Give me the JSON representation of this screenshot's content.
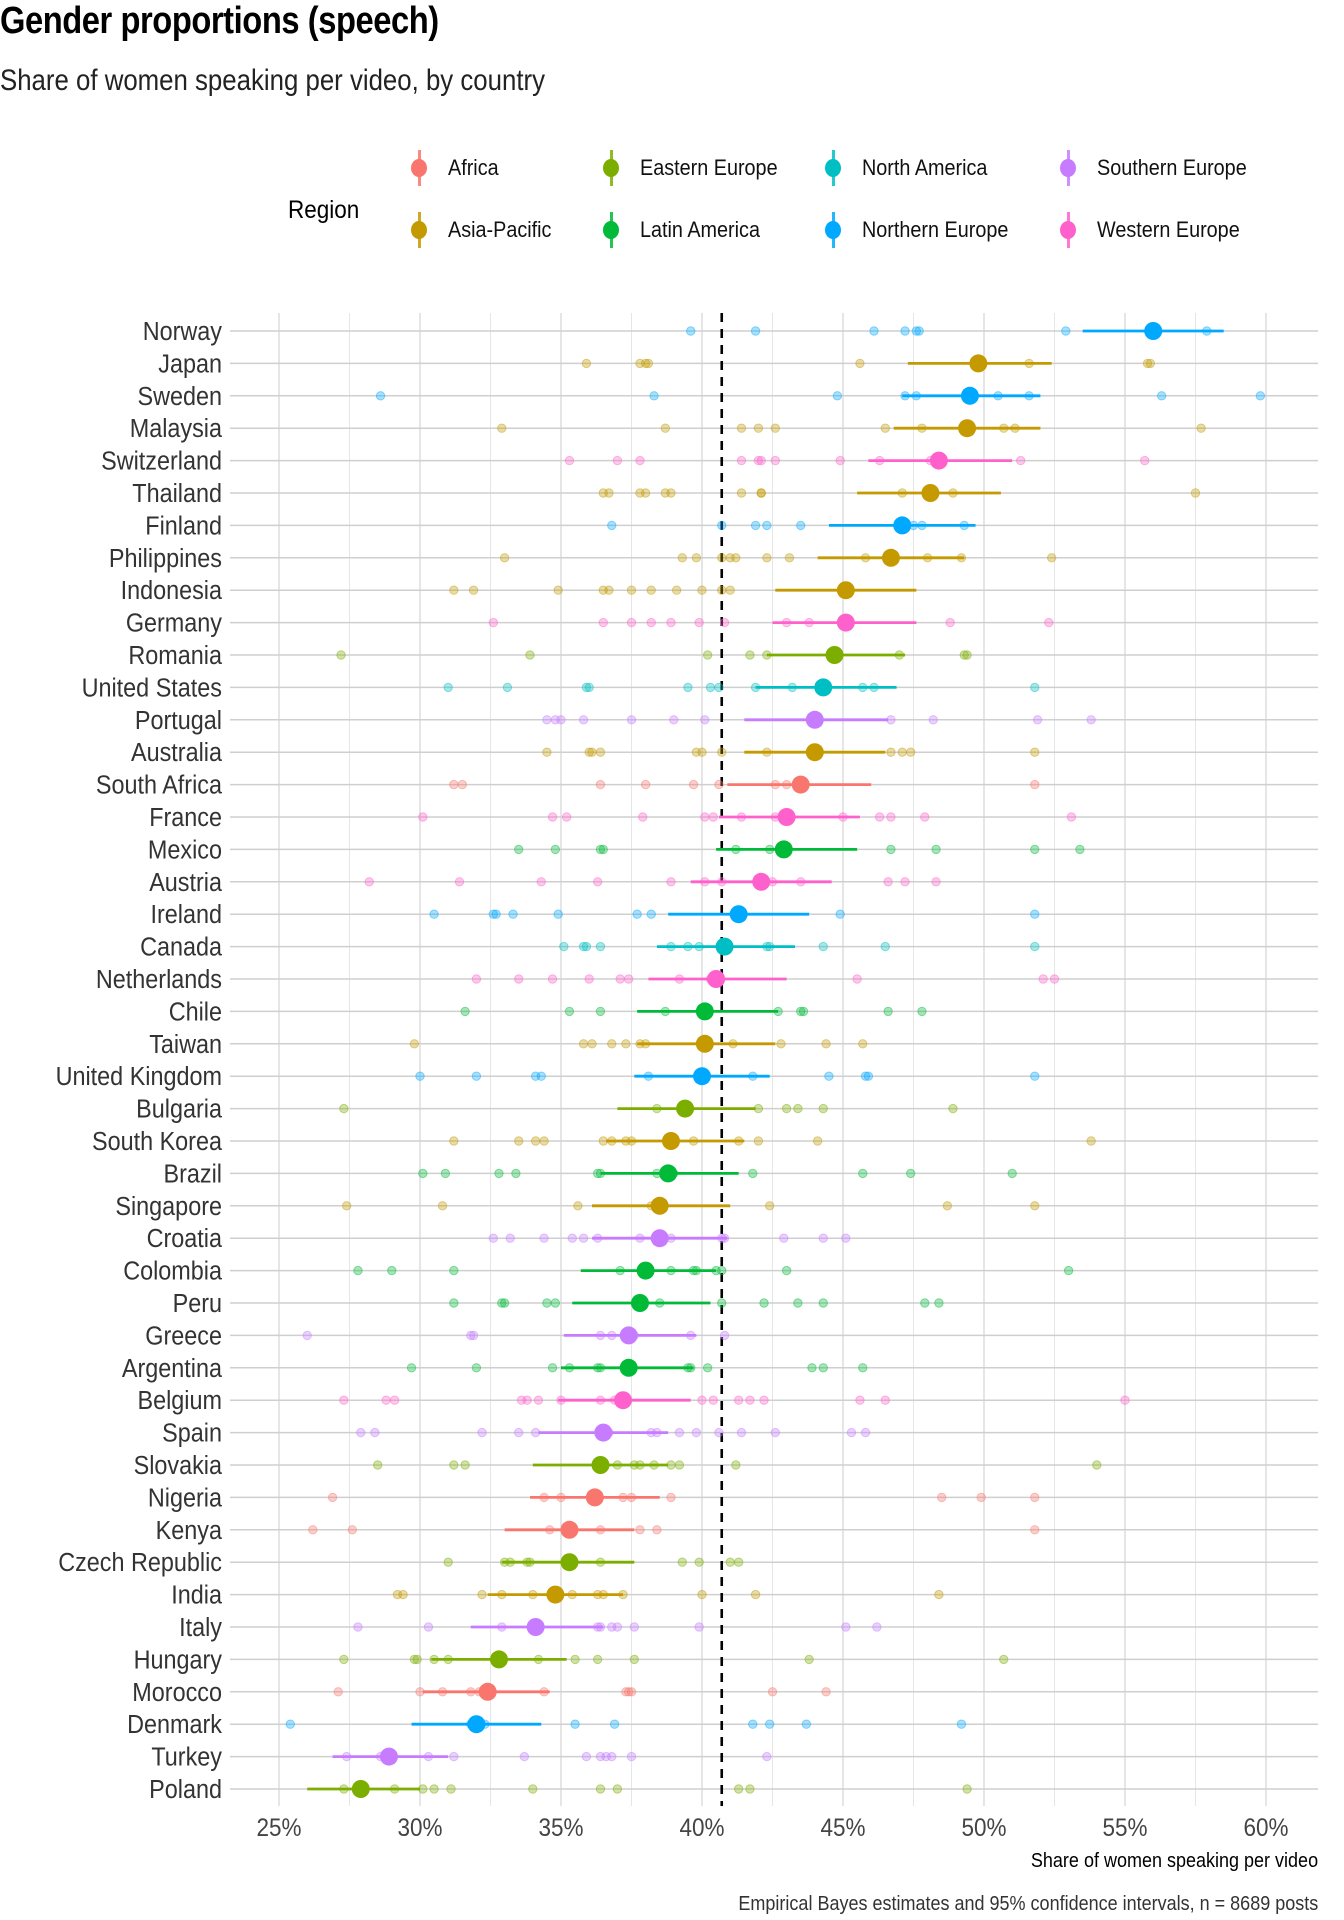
{
  "chart_data": {
    "type": "dot-interval",
    "title": "Gender proportions (speech)",
    "subtitle": "Share of women speaking per video, by country",
    "xlabel": "Share of women speaking per video",
    "ylabel": "",
    "caption": "Empirical Bayes estimates and 95% confidence intervals, n = 8689 posts",
    "xlim": [
      23.8,
      62.3
    ],
    "x_ticks": [
      25,
      30,
      35,
      40,
      45,
      50,
      55,
      60
    ],
    "x_tick_labels": [
      "25%",
      "30%",
      "35%",
      "40%",
      "45%",
      "50%",
      "55%",
      "60%"
    ],
    "grid": true,
    "reference_line": 40.7,
    "legend": {
      "title": "Region",
      "placement": "top",
      "entries": [
        {
          "name": "Africa",
          "color": "#F8766D"
        },
        {
          "name": "Asia-Pacific",
          "color": "#C49A00"
        },
        {
          "name": "Eastern Europe",
          "color": "#7CAE00"
        },
        {
          "name": "Latin America",
          "color": "#00BA38"
        },
        {
          "name": "North America",
          "color": "#00BFC4"
        },
        {
          "name": "Northern Europe",
          "color": "#00A9FF"
        },
        {
          "name": "Southern Europe",
          "color": "#C77CFF"
        },
        {
          "name": "Western Europe",
          "color": "#FF61CC"
        }
      ]
    },
    "countries": [
      {
        "name": "Norway",
        "region": "Northern Europe",
        "estimate": 56.0,
        "ci": [
          53.5,
          58.5
        ],
        "obs": [
          39.6,
          41.9,
          46.1,
          47.2,
          47.6,
          47.7,
          52.9,
          57.9
        ]
      },
      {
        "name": "Japan",
        "region": "Asia-Pacific",
        "estimate": 49.8,
        "ci": [
          47.3,
          52.4
        ],
        "obs": [
          35.9,
          37.8,
          38.1,
          38.0,
          45.6,
          51.6,
          55.8,
          55.9
        ]
      },
      {
        "name": "Sweden",
        "region": "Northern Europe",
        "estimate": 49.5,
        "ci": [
          47.1,
          52.0
        ],
        "obs": [
          28.6,
          38.3,
          44.8,
          47.2,
          47.6,
          50.5,
          51.6,
          56.3,
          59.8
        ]
      },
      {
        "name": "Malaysia",
        "region": "Asia-Pacific",
        "estimate": 49.4,
        "ci": [
          46.8,
          52.0
        ],
        "obs": [
          32.9,
          38.7,
          41.4,
          42.0,
          42.6,
          46.5,
          47.8,
          49.3,
          50.7,
          51.1,
          57.7
        ]
      },
      {
        "name": "Switzerland",
        "region": "Western Europe",
        "estimate": 48.4,
        "ci": [
          45.9,
          51.0
        ],
        "obs": [
          35.3,
          37.0,
          37.8,
          41.4,
          42.1,
          42.0,
          42.6,
          44.9,
          46.3,
          48.1,
          51.3,
          55.7
        ]
      },
      {
        "name": "Thailand",
        "region": "Asia-Pacific",
        "estimate": 48.1,
        "ci": [
          45.5,
          50.6
        ],
        "obs": [
          36.5,
          36.7,
          37.8,
          38.0,
          38.7,
          38.9,
          41.4,
          42.1,
          42.1,
          47.1,
          48.9,
          57.5
        ]
      },
      {
        "name": "Finland",
        "region": "Northern Europe",
        "estimate": 47.1,
        "ci": [
          44.5,
          49.7
        ],
        "obs": [
          36.8,
          40.7,
          41.9,
          42.3,
          43.5,
          47.5,
          47.8,
          49.3
        ]
      },
      {
        "name": "Philippines",
        "region": "Asia-Pacific",
        "estimate": 46.7,
        "ci": [
          44.1,
          49.3
        ],
        "obs": [
          33.0,
          39.3,
          39.8,
          40.7,
          41.0,
          41.2,
          42.3,
          43.1,
          45.8,
          46.6,
          48.0,
          49.2,
          52.4
        ]
      },
      {
        "name": "Indonesia",
        "region": "Asia-Pacific",
        "estimate": 45.1,
        "ci": [
          42.6,
          47.6
        ],
        "obs": [
          31.2,
          31.9,
          34.9,
          36.5,
          36.7,
          37.5,
          38.2,
          39.1,
          40.0,
          40.7,
          41.0
        ]
      },
      {
        "name": "Germany",
        "region": "Western Europe",
        "estimate": 45.1,
        "ci": [
          42.5,
          47.6
        ],
        "obs": [
          32.6,
          36.5,
          37.5,
          38.2,
          38.9,
          39.9,
          40.8,
          43.0,
          43.8,
          48.8,
          52.3
        ]
      },
      {
        "name": "Romania",
        "region": "Eastern Europe",
        "estimate": 44.7,
        "ci": [
          42.3,
          47.2
        ],
        "obs": [
          27.2,
          33.9,
          40.2,
          41.7,
          42.3,
          47.0,
          49.3,
          49.4
        ]
      },
      {
        "name": "United States",
        "region": "North America",
        "estimate": 44.3,
        "ci": [
          41.9,
          46.9
        ],
        "obs": [
          31.0,
          33.1,
          35.9,
          36.0,
          39.5,
          40.3,
          40.6,
          41.9,
          43.2,
          45.7,
          46.1,
          51.8
        ]
      },
      {
        "name": "Portugal",
        "region": "Southern Europe",
        "estimate": 44.0,
        "ci": [
          41.5,
          46.6
        ],
        "obs": [
          34.5,
          34.8,
          35.0,
          35.8,
          37.5,
          39.0,
          40.1,
          46.7,
          48.2,
          51.9,
          53.8
        ]
      },
      {
        "name": "Australia",
        "region": "Asia-Pacific",
        "estimate": 44.0,
        "ci": [
          41.5,
          46.5
        ],
        "obs": [
          34.5,
          36.0,
          36.1,
          36.4,
          39.8,
          40.0,
          40.7,
          42.3,
          46.7,
          47.1,
          47.4,
          51.8
        ]
      },
      {
        "name": "South Africa",
        "region": "Africa",
        "estimate": 43.5,
        "ci": [
          40.9,
          46.0
        ],
        "obs": [
          31.2,
          31.5,
          36.4,
          38.0,
          39.7,
          40.6,
          42.6,
          43.0,
          51.8
        ]
      },
      {
        "name": "France",
        "region": "Western Europe",
        "estimate": 43.0,
        "ci": [
          40.6,
          45.6
        ],
        "obs": [
          30.1,
          34.7,
          35.2,
          37.9,
          40.1,
          40.4,
          41.4,
          42.6,
          45.0,
          46.3,
          46.7,
          47.9,
          53.1
        ]
      },
      {
        "name": "Mexico",
        "region": "Latin America",
        "estimate": 42.9,
        "ci": [
          40.5,
          45.5
        ],
        "obs": [
          33.5,
          34.8,
          36.4,
          36.5,
          41.2,
          42.4,
          46.7,
          48.3,
          51.8,
          53.4
        ]
      },
      {
        "name": "Austria",
        "region": "Western Europe",
        "estimate": 42.1,
        "ci": [
          39.6,
          44.6
        ],
        "obs": [
          28.2,
          31.4,
          34.3,
          36.3,
          38.9,
          40.1,
          40.7,
          42.5,
          43.5,
          46.6,
          47.2,
          48.3
        ]
      },
      {
        "name": "Ireland",
        "region": "Northern Europe",
        "estimate": 41.3,
        "ci": [
          38.8,
          43.8
        ],
        "obs": [
          30.5,
          32.6,
          32.7,
          33.3,
          34.9,
          37.7,
          38.2,
          41.2,
          44.9,
          51.8
        ]
      },
      {
        "name": "Canada",
        "region": "North America",
        "estimate": 40.8,
        "ci": [
          38.4,
          43.3
        ],
        "obs": [
          35.1,
          35.8,
          35.9,
          36.4,
          38.9,
          39.5,
          39.9,
          42.3,
          42.4,
          44.3,
          46.5,
          51.8
        ]
      },
      {
        "name": "Netherlands",
        "region": "Western Europe",
        "estimate": 40.5,
        "ci": [
          38.1,
          43.0
        ],
        "obs": [
          32.0,
          33.5,
          34.7,
          36.0,
          37.1,
          37.4,
          39.2,
          40.3,
          45.5,
          52.1,
          52.5
        ]
      },
      {
        "name": "Chile",
        "region": "Latin America",
        "estimate": 40.1,
        "ci": [
          37.7,
          42.7
        ],
        "obs": [
          31.6,
          35.3,
          36.4,
          38.7,
          42.7,
          43.5,
          43.6,
          46.6,
          47.8
        ]
      },
      {
        "name": "Taiwan",
        "region": "Asia-Pacific",
        "estimate": 40.1,
        "ci": [
          37.7,
          42.6
        ],
        "obs": [
          29.8,
          35.8,
          36.1,
          36.8,
          37.3,
          37.8,
          38.0,
          41.1,
          42.8,
          44.4,
          45.7
        ]
      },
      {
        "name": "United Kingdom",
        "region": "Northern Europe",
        "estimate": 40.0,
        "ci": [
          37.6,
          42.4
        ],
        "obs": [
          30.0,
          32.0,
          34.1,
          34.3,
          38.1,
          41.8,
          44.5,
          45.8,
          45.9,
          51.8
        ]
      },
      {
        "name": "Bulgaria",
        "region": "Eastern Europe",
        "estimate": 39.4,
        "ci": [
          37.0,
          41.9
        ],
        "obs": [
          27.3,
          38.4,
          42.0,
          43.0,
          43.4,
          44.3,
          48.9
        ]
      },
      {
        "name": "South Korea",
        "region": "Asia-Pacific",
        "estimate": 38.9,
        "ci": [
          36.6,
          41.5
        ],
        "obs": [
          31.2,
          33.5,
          34.1,
          34.4,
          36.5,
          36.8,
          37.3,
          37.5,
          39.7,
          41.3,
          42.0,
          44.1,
          53.8
        ]
      },
      {
        "name": "Brazil",
        "region": "Latin America",
        "estimate": 38.8,
        "ci": [
          36.4,
          41.3
        ],
        "obs": [
          30.1,
          30.9,
          32.8,
          33.4,
          36.3,
          36.4,
          38.4,
          39.0,
          41.8,
          45.7,
          47.4,
          51.0
        ]
      },
      {
        "name": "Singapore",
        "region": "Asia-Pacific",
        "estimate": 38.5,
        "ci": [
          36.1,
          41.0
        ],
        "obs": [
          27.4,
          30.8,
          35.6,
          38.2,
          42.4,
          48.7,
          51.8
        ]
      },
      {
        "name": "Croatia",
        "region": "Southern Europe",
        "estimate": 38.5,
        "ci": [
          36.1,
          40.9
        ],
        "obs": [
          32.6,
          33.2,
          34.4,
          35.4,
          35.8,
          36.3,
          37.8,
          38.9,
          40.7,
          40.8,
          42.9,
          44.3,
          45.1
        ]
      },
      {
        "name": "Colombia",
        "region": "Latin America",
        "estimate": 38.0,
        "ci": [
          35.7,
          40.5
        ],
        "obs": [
          27.8,
          29.0,
          31.2,
          37.1,
          38.9,
          39.7,
          39.8,
          40.5,
          40.7,
          43.0,
          53.0
        ]
      },
      {
        "name": "Peru",
        "region": "Latin America",
        "estimate": 37.8,
        "ci": [
          35.4,
          40.3
        ],
        "obs": [
          31.2,
          32.9,
          33.0,
          34.5,
          34.8,
          38.5,
          40.7,
          42.2,
          43.4,
          44.3,
          47.9,
          48.4
        ]
      },
      {
        "name": "Greece",
        "region": "Southern Europe",
        "estimate": 37.4,
        "ci": [
          35.1,
          39.8
        ],
        "obs": [
          26.0,
          31.8,
          31.9,
          36.4,
          36.8,
          37.6,
          39.6,
          40.8
        ]
      },
      {
        "name": "Argentina",
        "region": "Latin America",
        "estimate": 37.4,
        "ci": [
          35.0,
          39.7
        ],
        "obs": [
          29.7,
          32.0,
          34.7,
          35.3,
          36.3,
          36.4,
          39.5,
          39.6,
          40.2,
          43.9,
          44.3,
          45.7
        ]
      },
      {
        "name": "Belgium",
        "region": "Western Europe",
        "estimate": 37.2,
        "ci": [
          34.9,
          39.6
        ],
        "obs": [
          27.3,
          28.8,
          29.1,
          33.6,
          33.8,
          34.2,
          35.0,
          36.4,
          36.9,
          37.2,
          40.0,
          40.4,
          41.3,
          41.7,
          42.2,
          45.6,
          46.5,
          55.0
        ]
      },
      {
        "name": "Spain",
        "region": "Southern Europe",
        "estimate": 36.5,
        "ci": [
          34.2,
          38.8
        ],
        "obs": [
          27.9,
          28.4,
          32.2,
          33.5,
          34.1,
          36.7,
          38.2,
          38.4,
          39.2,
          39.8,
          40.6,
          41.4,
          42.6,
          45.3,
          45.8
        ]
      },
      {
        "name": "Slovakia",
        "region": "Eastern Europe",
        "estimate": 36.4,
        "ci": [
          34.0,
          38.8
        ],
        "obs": [
          28.5,
          31.2,
          31.6,
          37.0,
          37.6,
          37.8,
          38.3,
          38.9,
          39.2,
          41.2,
          54.0
        ]
      },
      {
        "name": "Nigeria",
        "region": "Africa",
        "estimate": 36.2,
        "ci": [
          33.9,
          38.5
        ],
        "obs": [
          26.9,
          34.4,
          35.0,
          37.2,
          37.5,
          38.9,
          48.5,
          49.9,
          51.8
        ]
      },
      {
        "name": "Kenya",
        "region": "Africa",
        "estimate": 35.3,
        "ci": [
          33.0,
          37.6
        ],
        "obs": [
          26.2,
          27.6,
          34.6,
          36.4,
          37.8,
          38.4,
          51.8
        ]
      },
      {
        "name": "Czech Republic",
        "region": "Eastern Europe",
        "estimate": 35.3,
        "ci": [
          32.9,
          37.6
        ],
        "obs": [
          31.0,
          33.0,
          33.2,
          33.8,
          33.9,
          36.4,
          39.3,
          39.9,
          41.0,
          41.3
        ]
      },
      {
        "name": "India",
        "region": "Asia-Pacific",
        "estimate": 34.8,
        "ci": [
          32.4,
          37.2
        ],
        "obs": [
          29.2,
          29.4,
          32.2,
          32.9,
          34.0,
          35.4,
          36.3,
          36.5,
          37.2,
          40.0,
          41.9,
          48.4
        ]
      },
      {
        "name": "Italy",
        "region": "Southern Europe",
        "estimate": 34.1,
        "ci": [
          31.8,
          36.5
        ],
        "obs": [
          27.8,
          30.3,
          32.9,
          36.3,
          36.4,
          36.8,
          37.0,
          37.6,
          39.9,
          45.1,
          46.2
        ]
      },
      {
        "name": "Hungary",
        "region": "Eastern Europe",
        "estimate": 32.8,
        "ci": [
          30.4,
          35.2
        ],
        "obs": [
          27.3,
          29.8,
          29.9,
          30.5,
          31.0,
          34.2,
          35.5,
          36.3,
          37.6,
          43.8,
          50.7
        ]
      },
      {
        "name": "Morocco",
        "region": "Africa",
        "estimate": 32.4,
        "ci": [
          30.1,
          34.6
        ],
        "obs": [
          27.1,
          30.0,
          30.8,
          31.8,
          32.1,
          34.4,
          37.3,
          37.4,
          37.5,
          42.5,
          44.4
        ]
      },
      {
        "name": "Denmark",
        "region": "Northern Europe",
        "estimate": 32.0,
        "ci": [
          29.7,
          34.3
        ],
        "obs": [
          25.4,
          31.8,
          32.3,
          35.5,
          36.9,
          41.8,
          42.4,
          43.7,
          49.2
        ]
      },
      {
        "name": "Turkey",
        "region": "Southern Europe",
        "estimate": 28.9,
        "ci": [
          26.9,
          31.0
        ],
        "obs": [
          27.4,
          28.6,
          30.3,
          31.2,
          33.7,
          35.9,
          36.4,
          36.6,
          36.8,
          37.5,
          42.3
        ]
      },
      {
        "name": "Poland",
        "region": "Eastern Europe",
        "estimate": 27.9,
        "ci": [
          26.0,
          30.0
        ],
        "obs": [
          27.3,
          29.1,
          30.1,
          30.5,
          31.1,
          34.0,
          36.4,
          37.0,
          41.3,
          41.7,
          49.4
        ]
      }
    ]
  }
}
